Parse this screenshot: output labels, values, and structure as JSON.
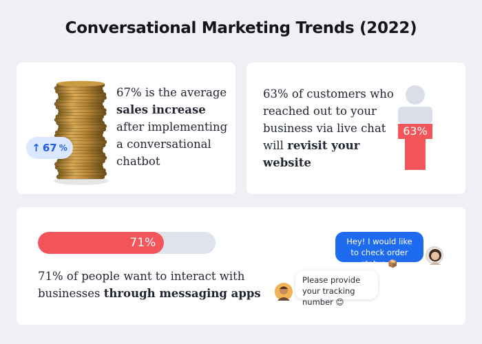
{
  "title": "Conversational Marketing Trends (2022)",
  "card1": {
    "badge_value": "67",
    "badge_unit": "%",
    "badge_arrow": "↑",
    "text_before": "67% is the average",
    "text_bold": "sales increase",
    "text_after": "after implementing a conversational chatbot"
  },
  "card2": {
    "text_before": "63% of customers who reached out to your business via live chat will",
    "text_bold": "revisit your website",
    "person_value": "63%",
    "person_fill_fraction": 0.63,
    "colors": {
      "fill": "#f2555a",
      "empty": "#d9dee8"
    }
  },
  "card3": {
    "bar_label": "71%",
    "bar_fraction": 0.71,
    "text_before": "71% of people want to interact with businesses",
    "text_bold": "through messaging apps",
    "chat_outgoing": "Hey! I would like to check order status",
    "chat_outgoing_emoji": "📦",
    "chat_incoming": "Please provide your tracking number",
    "chat_incoming_emoji": "😊"
  },
  "icons": {
    "coins": "coin-stack-icon",
    "person": "person-silhouette-icon",
    "arrow": "arrow-up-icon"
  },
  "colors": {
    "accent_blue": "#1e6bf0",
    "accent_red": "#f2555a",
    "badge_bg": "#dbe7ff"
  }
}
